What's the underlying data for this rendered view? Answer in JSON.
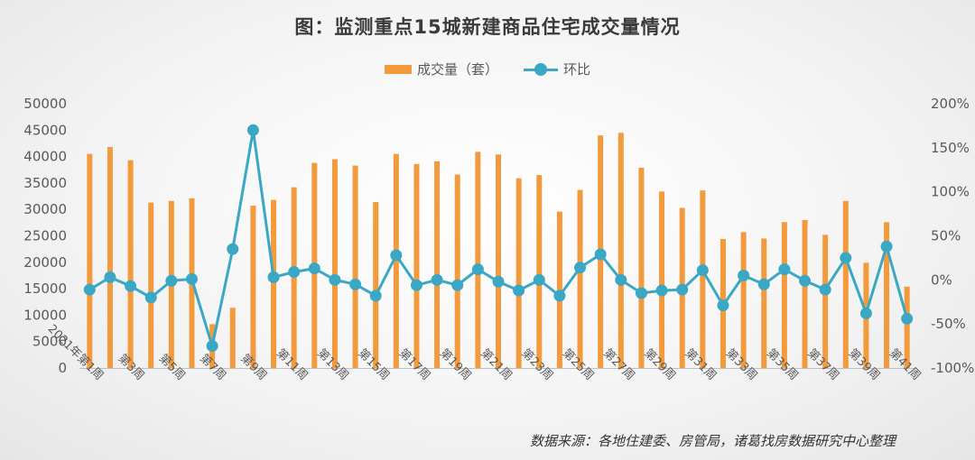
{
  "title": "图：监测重点15城新建商品住宅成交量情况",
  "source": "数据来源：各地住建委、房管局，诸葛找房数据研究中心整理",
  "colors": {
    "bar": "#f39a3d",
    "line": "#3aa7c4"
  },
  "chart_data": {
    "type": "bar+line",
    "series": [
      {
        "name": "成交量（套）",
        "type": "bar",
        "axis": "left",
        "values": [
          40500,
          41800,
          39300,
          31300,
          31600,
          32100,
          8300,
          11400,
          30700,
          31800,
          34200,
          38800,
          39500,
          38300,
          31400,
          40500,
          38600,
          39100,
          36600,
          40900,
          40400,
          35900,
          36500,
          29600,
          33700,
          44000,
          44500,
          37900,
          33400,
          30300,
          33600,
          24400,
          25700,
          24500,
          27600,
          28000,
          25200,
          31600,
          19900,
          27600,
          15400
        ]
      },
      {
        "name": "环比",
        "type": "line",
        "axis": "right",
        "unit": "%",
        "values": [
          -11,
          3,
          -7,
          -20,
          -1,
          1,
          -75,
          35,
          170,
          3,
          9,
          13,
          0,
          -5,
          -18,
          28,
          -6,
          0,
          -6,
          12,
          -2,
          -12,
          0,
          -18,
          14,
          29,
          0,
          -15,
          -12,
          -11,
          11,
          -29,
          5,
          -5,
          12,
          -1,
          -11,
          25,
          -38,
          38,
          -44
        ]
      }
    ],
    "left_axis": {
      "min": 0,
      "max": 50000,
      "ticks": [
        "0",
        "5000",
        "10000",
        "15000",
        "20000",
        "25000",
        "30000",
        "35000",
        "40000",
        "45000",
        "50000"
      ]
    },
    "right_axis": {
      "min": -100,
      "max": 200,
      "ticks": [
        "-100%",
        "-50%",
        "0%",
        "50%",
        "100%",
        "150%",
        "200%"
      ]
    },
    "x_tick_labels": [
      "2021年第1周",
      "第3周",
      "第5周",
      "第7周",
      "第9周",
      "第11周",
      "第13周",
      "第15周",
      "第17周",
      "第19周",
      "第21周",
      "第23周",
      "第25周",
      "第27周",
      "第29周",
      "第31周",
      "第33周",
      "第35周",
      "第37周",
      "第39周",
      "第41周"
    ],
    "legend": "top-center",
    "grid": false
  }
}
